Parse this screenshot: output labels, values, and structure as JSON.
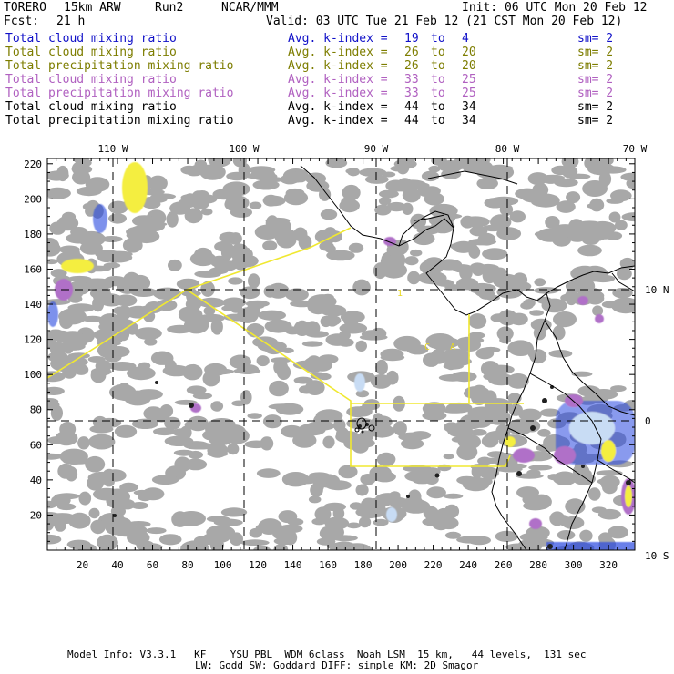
{
  "header": {
    "model": "TORERO",
    "resolution": "15km ARW",
    "run": "Run2",
    "org": "NCAR/MMM",
    "init": "Init: 06 UTC Mon 20 Feb 12",
    "fcst_label": "Fcst:",
    "fcst_value": "21 h",
    "valid": "Valid: 03 UTC Tue 21 Feb 12 (21 CST Mon 20 Feb 12)"
  },
  "legend": [
    {
      "field": "Total cloud mixing ratio",
      "avg": "Avg. k-index =",
      "k1": "19",
      "to": "to",
      "k2": "4",
      "sm": "sm= 2",
      "color": "#1010c8"
    },
    {
      "field": "Total cloud mixing ratio",
      "avg": "Avg. k-index =",
      "k1": "26",
      "to": "to",
      "k2": "20",
      "sm": "sm= 2",
      "color": "#7d7d00"
    },
    {
      "field": "Total precipitation mixing ratio",
      "avg": "Avg. k-index =",
      "k1": "26",
      "to": "to",
      "k2": "20",
      "sm": "sm= 2",
      "color": "#7d7d00"
    },
    {
      "field": "Total cloud mixing ratio",
      "avg": "Avg. k-index =",
      "k1": "33",
      "to": "to",
      "k2": "25",
      "sm": "sm= 2",
      "color": "#b060c0"
    },
    {
      "field": "Total precipitation mixing ratio",
      "avg": "Avg. k-index =",
      "k1": "33",
      "to": "to",
      "k2": "25",
      "sm": "sm= 2",
      "color": "#b060c0"
    },
    {
      "field": "Total cloud mixing ratio",
      "avg": "Avg. k-index =",
      "k1": "44",
      "to": "to",
      "k2": "34",
      "sm": "sm= 2",
      "color": "#000000"
    },
    {
      "field": "Total precipitation mixing ratio",
      "avg": "Avg. k-index =",
      "k1": "44",
      "to": "to",
      "k2": "34",
      "sm": "sm= 2",
      "color": "#000000"
    }
  ],
  "map": {
    "lon_labels": [
      "110 W",
      "100 W",
      "90 W",
      "80 W",
      "70 W"
    ],
    "lat_labels": [
      "10 N",
      "0",
      "10 S"
    ],
    "x_ticks": [
      "20",
      "40",
      "60",
      "80",
      "100",
      "120",
      "140",
      "160",
      "180",
      "200",
      "220",
      "240",
      "260",
      "280",
      "300",
      "320"
    ],
    "y_ticks": [
      "20",
      "40",
      "60",
      "80",
      "100",
      "120",
      "140",
      "160",
      "180",
      "200",
      "220"
    ],
    "colors": {
      "cloud": "#a8a8a8",
      "ice_light": "#c8dcf4",
      "ice_blue": "#2848e0",
      "yellow": "#f4ee40",
      "purple": "#b070c8",
      "black_core": "#202020",
      "coast": "#000000",
      "track": "#f0e830"
    }
  },
  "footer": {
    "line1": "Model Info: V3.3.1   KF    YSU PBL  WDM 6class  Noah LSM  15 km,   44 levels,  131 sec",
    "line2": "LW: Godd SW: Goddard DIFF: simple KM: 2D Smagor"
  }
}
